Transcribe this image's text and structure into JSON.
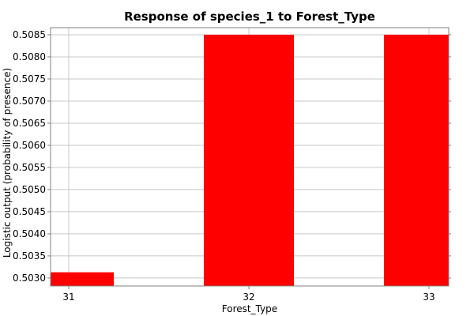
{
  "chart_data": {
    "type": "bar",
    "title": "Response of species_1 to Forest_Type",
    "xlabel": "Forest_Type",
    "ylabel": "Logistic output (probability of presence)",
    "categories": [
      "31",
      "32",
      "33"
    ],
    "values": [
      0.50313,
      0.5085,
      0.5085
    ],
    "ylim": [
      0.50282,
      0.50866
    ],
    "yticks": [
      "0.5030",
      "0.5035",
      "0.5040",
      "0.5045",
      "0.5050",
      "0.5055",
      "0.5060",
      "0.5065",
      "0.5070",
      "0.5075",
      "0.5080",
      "0.5085"
    ],
    "grid": true,
    "bar_color": "#ff0000",
    "legend": "none"
  }
}
